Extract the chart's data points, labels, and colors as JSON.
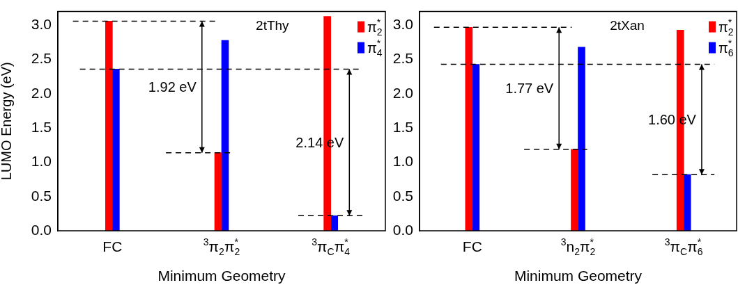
{
  "chart_data": [
    {
      "type": "bar",
      "title": "2tThy",
      "xlabel": "Minimum Geometry",
      "ylabel": "LUMO Energy (eV)",
      "categories": [
        "FC",
        "$^{3}$π$_{2}$π$^{*}$$_{2}$",
        "$^{3}$π$_{C}$π$^{*}$$_{4}$"
      ],
      "series": [
        {
          "name": "π$^{*}$$_{2}$",
          "color": "#ff0000",
          "values": [
            3.06,
            1.14,
            3.13
          ]
        },
        {
          "name": "π$^{*}$$_{4}$",
          "color": "#0000ff",
          "values": [
            2.36,
            2.78,
            0.22
          ]
        }
      ],
      "ylim": [
        0,
        3.2
      ],
      "yticks": [
        {
          "value": 0,
          "label": "0.0"
        },
        {
          "value": 0.5,
          "label": "0.5"
        },
        {
          "value": 1,
          "label": "1.0"
        },
        {
          "value": 1.5,
          "label": "1.5"
        },
        {
          "value": 2,
          "label": "2.0"
        },
        {
          "value": 2.5,
          "label": "2.5"
        },
        {
          "value": 3,
          "label": "3.0"
        }
      ],
      "ref_lines": [
        {
          "axis": "y",
          "value": 3.06,
          "line_style": "dashed",
          "color": "#000000"
        },
        {
          "axis": "y",
          "value": 2.36,
          "line_style": "dashed",
          "color": "#000000"
        },
        {
          "axis": "y",
          "value": 1.14,
          "line_style": "dashed",
          "color": "#000000"
        },
        {
          "axis": "y",
          "value": 0.22,
          "line_style": "dashed",
          "color": "#000000"
        }
      ],
      "annotations": [
        "1.92 eV",
        "2.14 eV"
      ],
      "legend": "top right"
    },
    {
      "type": "bar",
      "title": "2tXan",
      "xlabel": "Minimum Geometry",
      "categories": [
        "FC",
        "$^{3}$n$_{2}$π$^{*}$$_{2}$",
        "$^{3}$π$_{C}$π$^{*}$$_{6}$"
      ],
      "series": [
        {
          "name": "π$^{*}$$_{2}$",
          "color": "#ff0000",
          "values": [
            2.97,
            1.19,
            2.93
          ]
        },
        {
          "name": "π$^{*}$$_{6}$",
          "color": "#0000ff",
          "values": [
            2.43,
            2.68,
            0.82
          ]
        }
      ],
      "ylim": [
        0,
        3.2
      ],
      "yticks": [
        {
          "value": 0,
          "label": "0.0"
        },
        {
          "value": 0.5,
          "label": "0.5"
        },
        {
          "value": 1,
          "label": "1.0"
        },
        {
          "value": 1.5,
          "label": "1.5"
        },
        {
          "value": 2,
          "label": "2.0"
        },
        {
          "value": 2.5,
          "label": "2.5"
        },
        {
          "value": 3,
          "label": "3.0"
        }
      ],
      "ref_lines": [
        {
          "axis": "y",
          "value": 2.97,
          "line_style": "dashed",
          "color": "#000000"
        },
        {
          "axis": "y",
          "value": 2.43,
          "line_style": "dashed",
          "color": "#000000"
        },
        {
          "axis": "y",
          "value": 1.19,
          "line_style": "dashed",
          "color": "#000000"
        },
        {
          "axis": "y",
          "value": 0.82,
          "line_style": "dashed",
          "color": "#000000"
        }
      ],
      "annotations": [
        "1.77 eV",
        "1.60 eV"
      ],
      "legend": "top right"
    }
  ]
}
